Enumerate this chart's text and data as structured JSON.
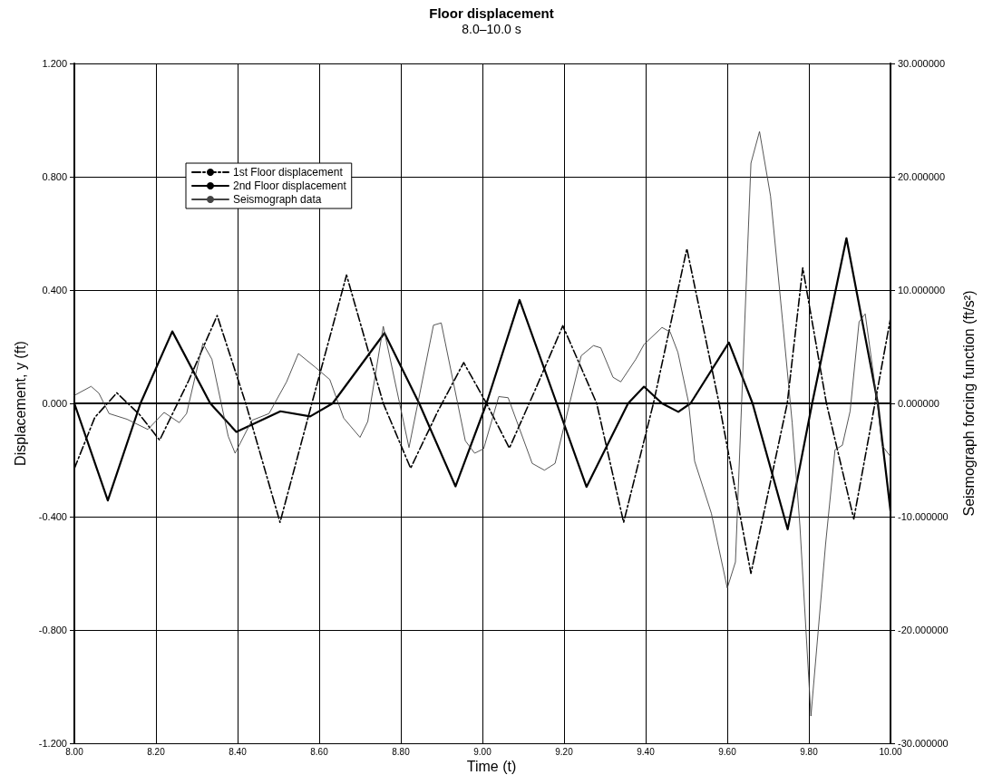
{
  "chart_data": {
    "type": "line",
    "title": "Floor displacement",
    "subtitle": "8.0–10.0 s",
    "xlabel": "Time (t)",
    "ylabel": "Displacement, y (ft)",
    "y2label": "Seismograph forcing function (ft/s²)",
    "xlim": [
      8,
      10
    ],
    "xticks": [
      {
        "value": 8,
        "label": "8.00"
      },
      {
        "value": 8.2,
        "label": "8.20"
      },
      {
        "value": 8.4,
        "label": "8.40"
      },
      {
        "value": 8.6,
        "label": "8.60"
      },
      {
        "value": 8.8,
        "label": "8.80"
      },
      {
        "value": 9,
        "label": "9.00"
      },
      {
        "value": 9.2,
        "label": "9.20"
      },
      {
        "value": 9.4,
        "label": "9.40"
      },
      {
        "value": 9.6,
        "label": "9.60"
      },
      {
        "value": 9.8,
        "label": "9.80"
      },
      {
        "value": 10,
        "label": "10.00"
      }
    ],
    "ylim": [
      -1.2,
      1.2
    ],
    "yticks": [
      {
        "value": -1.2,
        "label": "-1.200"
      },
      {
        "value": -0.8,
        "label": "-0.800"
      },
      {
        "value": -0.4,
        "label": "-0.400"
      },
      {
        "value": 0,
        "label": "0.000"
      },
      {
        "value": 0.4,
        "label": "0.400"
      },
      {
        "value": 0.8,
        "label": "0.800"
      },
      {
        "value": 1.2,
        "label": "1.200"
      }
    ],
    "y2lim": [
      -30,
      30
    ],
    "y2ticks": [
      {
        "value": -30,
        "label": "-30.000000"
      },
      {
        "value": -20,
        "label": "-20.000000"
      },
      {
        "value": -10,
        "label": "-10.000000"
      },
      {
        "value": 0,
        "label": "0.000000"
      },
      {
        "value": 10,
        "label": "10.000000"
      },
      {
        "value": 20,
        "label": "20.000000"
      },
      {
        "value": 30,
        "label": "30.000000"
      }
    ],
    "grid": true,
    "legend": "top left",
    "marker": "none",
    "series": [
      {
        "name": "1st Floor displacement",
        "color": "#000000",
        "line_style": "dashdot",
        "x": [
          8.0,
          8.05,
          8.104,
          8.16,
          8.209,
          8.28,
          8.35,
          8.42,
          8.504,
          8.582,
          8.667,
          8.757,
          8.824,
          8.89,
          8.954,
          9.01,
          9.066,
          9.13,
          9.197,
          9.28,
          9.346,
          9.419,
          9.501,
          9.58,
          9.658,
          9.747,
          9.785,
          9.843,
          9.91,
          10.0
        ],
        "values": [
          -0.23,
          -0.05,
          0.037,
          -0.04,
          -0.13,
          0.08,
          0.31,
          0.0,
          -0.42,
          0.0,
          0.453,
          0.0,
          -0.229,
          -0.03,
          0.144,
          0.0,
          -0.158,
          0.05,
          0.274,
          0.0,
          -0.42,
          0.0,
          0.546,
          0.0,
          -0.6,
          0.0,
          0.478,
          0.0,
          -0.408,
          0.3
        ]
      },
      {
        "name": "2nd Floor displacement",
        "color": "#000000",
        "line_style": "solid",
        "x": [
          8.0,
          8.082,
          8.162,
          8.24,
          8.333,
          8.397,
          8.505,
          8.578,
          8.633,
          8.76,
          8.845,
          8.934,
          9.01,
          9.091,
          9.182,
          9.255,
          9.357,
          9.396,
          9.44,
          9.48,
          9.51,
          9.604,
          9.662,
          9.748,
          9.808,
          9.892,
          9.969,
          10.0
        ],
        "values": [
          0.0,
          -0.343,
          0.0,
          0.254,
          0.0,
          -0.101,
          -0.028,
          -0.046,
          0.0,
          0.248,
          0.0,
          -0.293,
          0.0,
          0.365,
          0.0,
          -0.295,
          0.0,
          0.059,
          0.0,
          -0.03,
          0.0,
          0.215,
          0.0,
          -0.445,
          0.0,
          0.583,
          0.0,
          -0.38
        ]
      },
      {
        "name": "Seismograph data",
        "color": "#444444",
        "line_style": "solid",
        "axis": "y2",
        "x": [
          8.0,
          8.041,
          8.06,
          8.085,
          8.129,
          8.18,
          8.22,
          8.257,
          8.275,
          8.315,
          8.337,
          8.377,
          8.394,
          8.435,
          8.477,
          8.52,
          8.549,
          8.59,
          8.626,
          8.66,
          8.7,
          8.719,
          8.757,
          8.82,
          8.88,
          8.899,
          8.958,
          8.981,
          9.003,
          9.04,
          9.063,
          9.122,
          9.152,
          9.178,
          9.242,
          9.272,
          9.29,
          9.32,
          9.339,
          9.376,
          9.396,
          9.44,
          9.46,
          9.479,
          9.505,
          9.52,
          9.561,
          9.6,
          9.62,
          9.658,
          9.679,
          9.706,
          9.736,
          9.759,
          9.778,
          9.805,
          9.841,
          9.864,
          9.882,
          9.901,
          9.923,
          9.938,
          9.968,
          9.979,
          10.0
        ],
        "values": [
          0.7,
          1.5,
          0.9,
          -0.9,
          -1.4,
          -2.3,
          -0.8,
          -1.7,
          -0.9,
          5.3,
          3.9,
          -2.9,
          -4.4,
          -1.5,
          -0.9,
          1.9,
          4.4,
          3.2,
          2.1,
          -1.3,
          -3.0,
          -1.6,
          6.8,
          -3.9,
          6.9,
          7.1,
          -3.3,
          -4.4,
          -4.0,
          0.6,
          0.5,
          -5.3,
          -5.9,
          -5.3,
          4.2,
          5.1,
          4.9,
          2.3,
          1.9,
          3.9,
          5.2,
          6.7,
          6.3,
          4.5,
          0.1,
          -5.1,
          -9.7,
          -16.3,
          -14.0,
          21.2,
          24.0,
          18.3,
          7.1,
          -1.7,
          -10.8,
          -27.6,
          -12.4,
          -4.1,
          -3.7,
          -0.7,
          7.2,
          7.9,
          0.0,
          -3.7,
          -4.7
        ]
      }
    ]
  }
}
